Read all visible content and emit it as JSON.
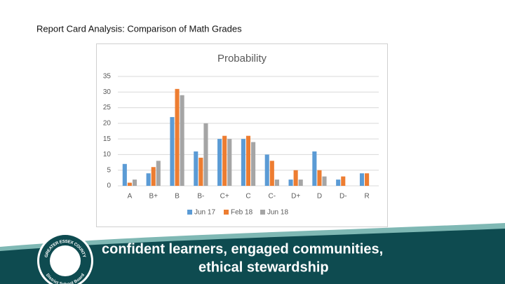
{
  "slide_title": "Report Card Analysis: Comparison of Math Grades",
  "chart_data": {
    "type": "bar",
    "title": "Probability",
    "categories": [
      "A",
      "B+",
      "B",
      "B-",
      "C+",
      "C",
      "C-",
      "D+",
      "D",
      "D-",
      "R"
    ],
    "series": [
      {
        "name": "Jun 17",
        "color": "#5b9bd5",
        "values": [
          7,
          4,
          22,
          11,
          15,
          15,
          10,
          2,
          11,
          2,
          4
        ]
      },
      {
        "name": "Feb 18",
        "color": "#ed7d31",
        "values": [
          1,
          6,
          31,
          9,
          16,
          16,
          8,
          5,
          5,
          3,
          4
        ]
      },
      {
        "name": "Jun 18",
        "color": "#a5a5a5",
        "values": [
          2,
          8,
          29,
          20,
          15,
          14,
          2,
          2,
          3,
          0,
          0
        ]
      }
    ],
    "ylim": [
      0,
      35
    ],
    "yticks": [
      0,
      5,
      10,
      15,
      20,
      25,
      30,
      35
    ],
    "grid": true,
    "legend": "bottom"
  },
  "footer": {
    "line1": "confident learners, engaged communities,",
    "line2": "ethical stewardship",
    "logo_top": "GREATER ESSEX COUNTY",
    "logo_bottom": "District School Board"
  }
}
